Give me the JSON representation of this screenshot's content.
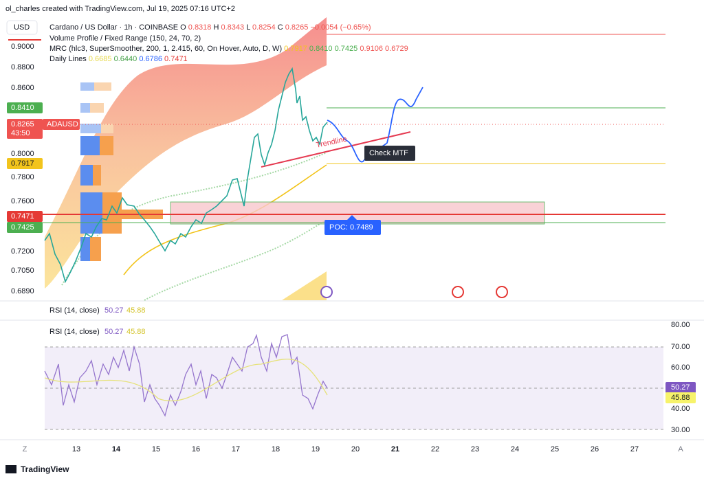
{
  "header": {
    "credit": "ol_charles created with TradingView.com, Jul 19, 2025 07:16 UTC+2"
  },
  "toolbar": {
    "currency": "USD"
  },
  "legend": {
    "symbol": "Cardano / US Dollar · 1h · COINBASE",
    "ohlc": [
      {
        "label": "O",
        "value": "0.8318"
      },
      {
        "label": "H",
        "value": "0.8343"
      },
      {
        "label": "L",
        "value": "0.8254"
      },
      {
        "label": "C",
        "value": "0.8265"
      }
    ],
    "change": "−0.0054 (−0.65%)",
    "volume_profile": "Volume Profile / Fixed Range (150, 24, 70, 2)",
    "mrc": {
      "name": "MRC (hlc3, SuperSmoother, 200, 1, 2.415, 60, On Hover, Auto, D, W)",
      "values": [
        "0.7917",
        "0.8410",
        "0.7425",
        "0.9106",
        "0.6729"
      ]
    },
    "daily_lines": {
      "name": "Daily Lines",
      "values": [
        "0.6685",
        "0.6440",
        "0.6786",
        "0.7471"
      ]
    }
  },
  "price_axis": [
    "0.9000",
    "0.8800",
    "0.8600",
    "0.8000",
    "0.7800",
    "0.7600",
    "0.7200",
    "0.7050",
    "0.6890"
  ],
  "price_tags": {
    "mrc_upper_inner": "0.8410",
    "last": "0.8265",
    "countdown": "43:50",
    "symbol": "ADAUSD",
    "mrc_mean": "0.7917",
    "daily_line": "0.7471",
    "mrc_lower_inner": "0.7425"
  },
  "annotations": {
    "trendline": "Trendline",
    "check": "Check MTF",
    "poc": "POC: 0.7489"
  },
  "rsi_collapsed": {
    "name": "RSI (14, close)",
    "values": [
      "50.27",
      "45.88"
    ]
  },
  "rsi": {
    "name": "RSI (14, close)",
    "values": [
      "50.27",
      "45.88"
    ],
    "axis": [
      "80.00",
      "70.00",
      "60.00",
      "40.00",
      "30.00"
    ]
  },
  "time_axis": [
    "13",
    "14",
    "15",
    "16",
    "17",
    "18",
    "19",
    "20",
    "21",
    "22",
    "23",
    "24",
    "25",
    "26",
    "27"
  ],
  "time_axis_buttons": [
    "Z",
    "A"
  ],
  "footer": {
    "brand": "TradingView"
  }
}
